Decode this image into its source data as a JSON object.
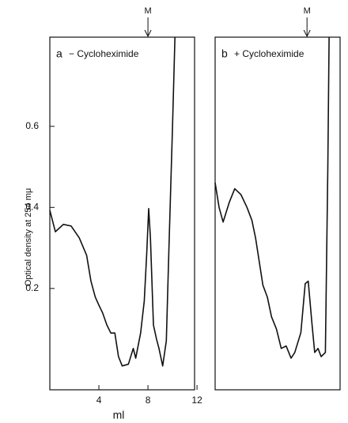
{
  "chart_data": [
    {
      "type": "line",
      "panel": "a",
      "title": "− Cycloheximide",
      "ylabel": "Optical density at 254 mμ",
      "xlabel": "ml",
      "xlim": [
        0,
        11.8
      ],
      "ylim": [
        -0.05,
        0.82
      ],
      "xticks": [
        4,
        8,
        12
      ],
      "yticks": [
        0.2,
        0.4,
        0.6
      ],
      "annotations": [
        {
          "text": "M",
          "x": 8
        }
      ],
      "series": [
        {
          "color": "#111111",
          "x": [
            0,
            0.45,
            1.1,
            1.74,
            2.4,
            3.0,
            3.35,
            3.7,
            4.0,
            4.3,
            4.65,
            4.97,
            5.3,
            5.6,
            5.9,
            6.4,
            6.8,
            7.0,
            7.4,
            7.7,
            7.9,
            8.06,
            8.2,
            8.45,
            8.7,
            8.9,
            9.2,
            9.5,
            9.7,
            10.0,
            10.2
          ],
          "values": [
            0.393,
            0.34,
            0.358,
            0.354,
            0.325,
            0.282,
            0.218,
            0.179,
            0.159,
            0.14,
            0.11,
            0.09,
            0.09,
            0.032,
            0.009,
            0.013,
            0.052,
            0.028,
            0.09,
            0.169,
            0.286,
            0.397,
            0.325,
            0.11,
            0.075,
            0.052,
            0.009,
            0.071,
            0.286,
            0.598,
            0.82
          ]
        }
      ]
    },
    {
      "type": "line",
      "panel": "b",
      "title": "+ Cycloheximide",
      "xlim": [
        0,
        10.2
      ],
      "ylim": [
        -0.05,
        0.82
      ],
      "annotations": [
        {
          "text": "M",
          "x": 7.5
        }
      ],
      "series": [
        {
          "color": "#111111",
          "x": [
            0,
            0.32,
            0.65,
            1.16,
            1.6,
            2.1,
            2.6,
            3.0,
            3.3,
            3.6,
            3.9,
            4.26,
            4.6,
            5.0,
            5.4,
            5.8,
            6.2,
            6.5,
            7.0,
            7.35,
            7.6,
            7.9,
            8.13,
            8.4,
            8.65,
            9.0,
            9.2,
            9.3
          ],
          "values": [
            0.461,
            0.4,
            0.364,
            0.413,
            0.446,
            0.432,
            0.4,
            0.368,
            0.325,
            0.266,
            0.208,
            0.179,
            0.13,
            0.1,
            0.052,
            0.058,
            0.028,
            0.042,
            0.091,
            0.212,
            0.218,
            0.114,
            0.042,
            0.052,
            0.032,
            0.042,
            0.5,
            0.82
          ]
        }
      ]
    }
  ]
}
